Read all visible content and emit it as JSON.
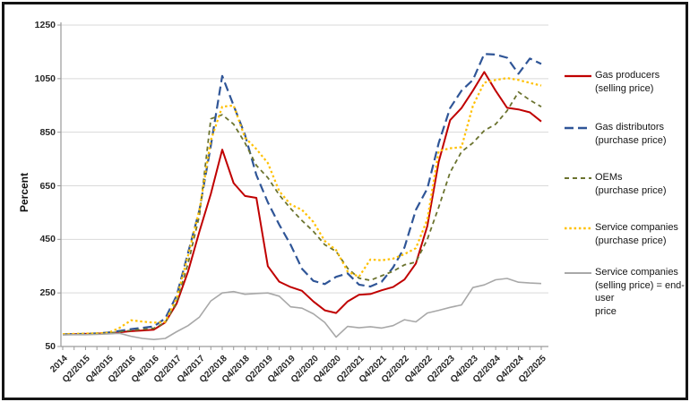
{
  "window": {
    "background": "#ffffff",
    "frame_color": "#151515"
  },
  "chart_data": {
    "type": "line",
    "title": "",
    "ylabel": "Percent",
    "xlabel": "",
    "ylim": [
      50,
      1250
    ],
    "y_ticks": [
      50,
      250,
      450,
      650,
      850,
      1050,
      1250
    ],
    "grid": "horizontal",
    "gridline_color": "#d9d9d9",
    "axis_color": "#9a9a9a",
    "legend_position": "right",
    "x_label_every": 2,
    "x_tick_labels": [
      "2014",
      "Q2/2015",
      "Q4/2015",
      "Q2/2016",
      "Q4/2016",
      "Q2/2017",
      "Q4/2017",
      "Q2/2018",
      "Q4/2018",
      "Q2/2019",
      "Q4/2019",
      "Q2/2020",
      "Q4/2020",
      "Q2/2021",
      "Q4/2021",
      "Q2/2022",
      "Q4/2022",
      "Q2/2023",
      "Q4/2023",
      "Q2/2024",
      "Q4/2024",
      "Q2/2025"
    ],
    "categories": [
      "2014",
      "Q1/2015",
      "Q2/2015",
      "Q3/2015",
      "Q4/2015",
      "Q1/2016",
      "Q2/2016",
      "Q3/2016",
      "Q4/2016",
      "Q1/2017",
      "Q2/2017",
      "Q3/2017",
      "Q4/2017",
      "Q1/2018",
      "Q2/2018",
      "Q3/2018",
      "Q4/2018",
      "Q1/2019",
      "Q2/2019",
      "Q3/2019",
      "Q4/2019",
      "Q1/2020",
      "Q2/2020",
      "Q3/2020",
      "Q4/2020",
      "Q1/2021",
      "Q2/2021",
      "Q3/2021",
      "Q4/2021",
      "Q1/2022",
      "Q2/2022",
      "Q3/2022",
      "Q4/2022",
      "Q1/2023",
      "Q2/2023",
      "Q3/2023",
      "Q4/2023",
      "Q1/2024",
      "Q2/2024",
      "Q3/2024",
      "Q4/2024",
      "Q1/2025",
      "Q2/2025"
    ],
    "series": [
      {
        "name": "Gas producers (selling price)",
        "legend_lines": [
          "Gas producers",
          "(selling price)"
        ],
        "color": "#c00000",
        "dash": "",
        "width": 2,
        "values": [
          95,
          96,
          97,
          98,
          100,
          103,
          107,
          110,
          113,
          140,
          210,
          330,
          480,
          620,
          785,
          660,
          612,
          605,
          350,
          292,
          272,
          258,
          218,
          185,
          175,
          218,
          243,
          246,
          260,
          272,
          300,
          360,
          500,
          740,
          895,
          940,
          1005,
          1075,
          1005,
          941,
          935,
          924,
          890
        ]
      },
      {
        "name": "Gas distributors (purchase price)",
        "legend_lines": [
          "Gas distributors",
          "(purchase price)"
        ],
        "color": "#2f5597",
        "dash": "10 5",
        "width": 2.2,
        "values": [
          95,
          96,
          97,
          99,
          102,
          108,
          115,
          120,
          125,
          155,
          240,
          400,
          560,
          800,
          1060,
          950,
          840,
          690,
          588,
          505,
          430,
          340,
          295,
          283,
          310,
          323,
          281,
          274,
          292,
          345,
          420,
          560,
          640,
          810,
          940,
          1005,
          1045,
          1142,
          1140,
          1128,
          1068,
          1125,
          1105
        ]
      },
      {
        "name": "OEMs (purchase price)",
        "legend_lines": [
          "OEMs",
          "(purchase price)"
        ],
        "color": "#6b732f",
        "dash": "5 4",
        "width": 1.8,
        "values": [
          95,
          95,
          96,
          97,
          99,
          105,
          110,
          114,
          118,
          140,
          215,
          360,
          540,
          900,
          915,
          880,
          810,
          726,
          680,
          616,
          565,
          520,
          480,
          430,
          405,
          342,
          305,
          297,
          314,
          331,
          355,
          365,
          450,
          570,
          700,
          777,
          810,
          856,
          880,
          930,
          1000,
          970,
          945
        ]
      },
      {
        "name": "Service companies (purchase price)",
        "legend_lines": [
          "Service companies",
          "(purchase price)"
        ],
        "color": "#ffc000",
        "dash": "2.5 2.8",
        "width": 2.2,
        "values": [
          96,
          97,
          98,
          99,
          101,
          120,
          148,
          143,
          139,
          142,
          230,
          390,
          560,
          820,
          945,
          950,
          830,
          787,
          735,
          630,
          580,
          560,
          515,
          444,
          410,
          330,
          310,
          375,
          372,
          378,
          395,
          417,
          525,
          780,
          790,
          794,
          948,
          1035,
          1045,
          1052,
          1045,
          1034,
          1024
        ]
      },
      {
        "name": "Service companies (selling price) = end-user price",
        "legend_lines": [
          "Service companies",
          "(selling price) = end-user",
          "price"
        ],
        "color": "#a8a8a8",
        "dash": "",
        "width": 1.6,
        "values": [
          93,
          94,
          94,
          95,
          97,
          99,
          88,
          80,
          76,
          80,
          105,
          128,
          160,
          220,
          250,
          255,
          245,
          248,
          250,
          238,
          198,
          193,
          172,
          140,
          85,
          125,
          120,
          124,
          119,
          128,
          150,
          142,
          175,
          185,
          196,
          205,
          270,
          280,
          299,
          304,
          290,
          287,
          285
        ]
      }
    ],
    "legend_item_tops": [
      72,
      130,
      186,
      242,
      292
    ]
  }
}
